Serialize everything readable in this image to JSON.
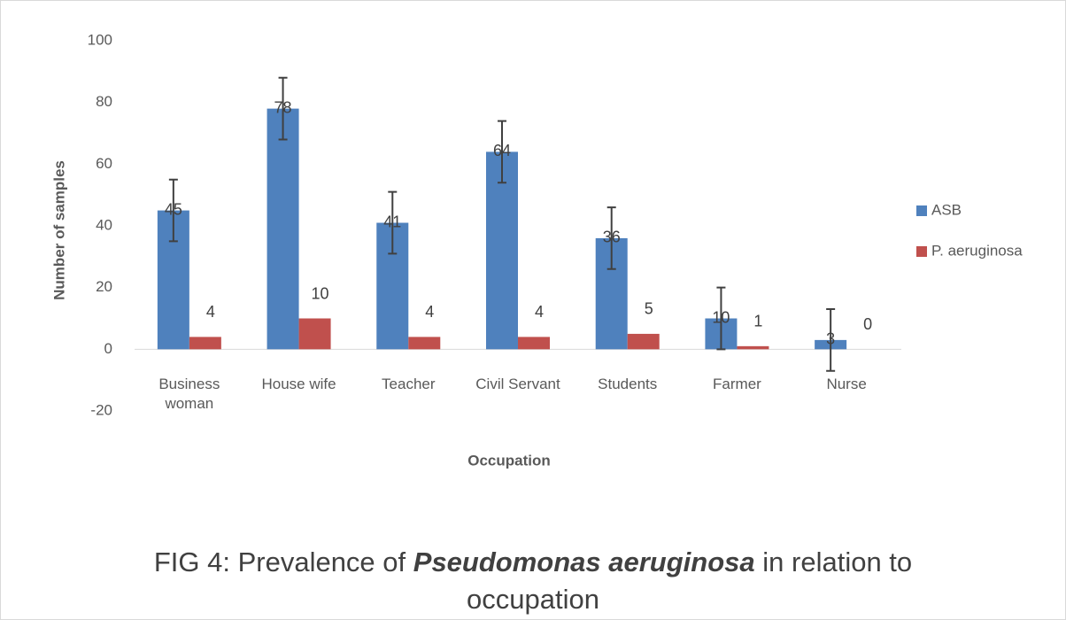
{
  "chart_data": {
    "type": "bar",
    "categories": [
      "Business woman",
      "House wife",
      "Teacher",
      "Civil Servant",
      "Students",
      "Farmer",
      "Nurse"
    ],
    "series": [
      {
        "name": "ASB",
        "color": "#4f81bd",
        "values": [
          45,
          78,
          41,
          64,
          36,
          10,
          3
        ],
        "errors": [
          10,
          10,
          10,
          10,
          10,
          10,
          10
        ]
      },
      {
        "name": "P. aeruginosa",
        "color": "#c0504d",
        "values": [
          4,
          10,
          4,
          4,
          5,
          1,
          0
        ]
      }
    ],
    "ylim": [
      -20,
      100
    ],
    "yticks": [
      -20,
      0,
      20,
      40,
      60,
      80,
      100
    ],
    "y_label": "Number of samples",
    "x_label": "Occupation",
    "legend": "right",
    "caption": {
      "prefix": "FIG 4: Prevalence of ",
      "emphasis": "Pseudomonas aeruginosa",
      "suffix": " in relation to occupation"
    }
  }
}
